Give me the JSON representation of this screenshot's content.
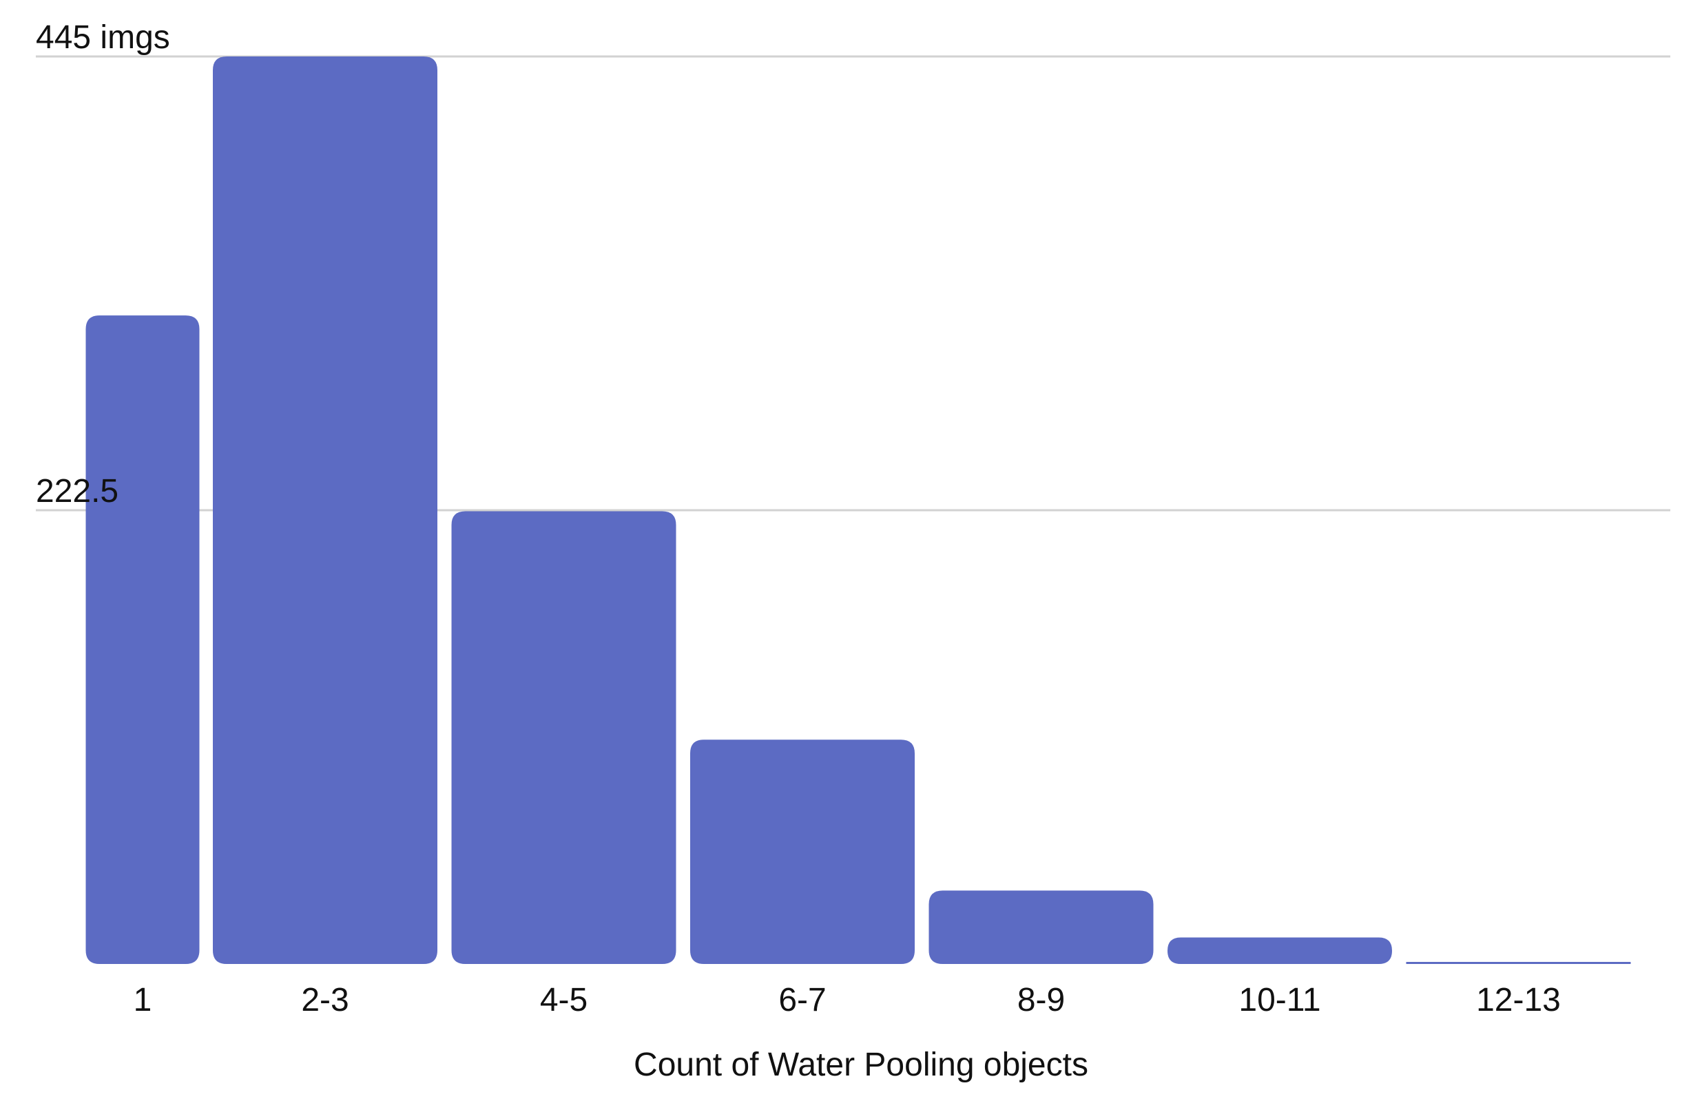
{
  "chart_data": {
    "type": "bar",
    "title": "",
    "xlabel": "Count of Water Pooling objects",
    "ylabel": "",
    "categories": [
      "1",
      "2-3",
      "4-5",
      "6-7",
      "8-9",
      "10-11",
      "12-13"
    ],
    "values": [
      318,
      445,
      222,
      110,
      36,
      13,
      1
    ],
    "ylim": [
      0,
      445
    ],
    "yticks": [
      {
        "value": 445,
        "label": "445 imgs"
      },
      {
        "value": 222.5,
        "label": "222.5"
      }
    ],
    "grid": true,
    "legend": "none",
    "bar_color": "#5c6bc3",
    "grid_color": "#d2d2d2",
    "text_color": "#111111"
  }
}
